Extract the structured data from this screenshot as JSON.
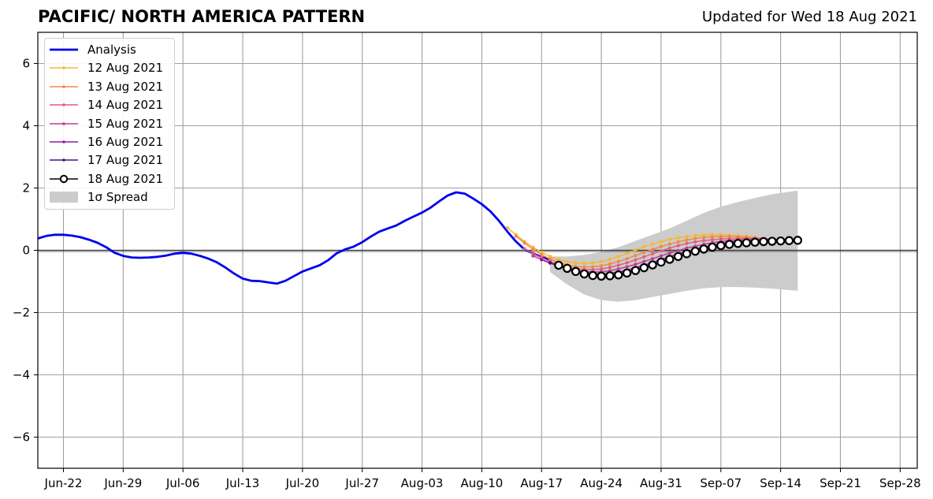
{
  "header": {
    "title": "PACIFIC/ NORTH AMERICA PATTERN",
    "updated": "Updated for Wed 18 Aug 2021"
  },
  "chart_data": {
    "type": "line",
    "title": "PACIFIC/ NORTH AMERICA PATTERN",
    "subtitle": "Updated for Wed 18 Aug 2021",
    "xlabel": "",
    "ylabel": "",
    "x_axis": {
      "kind": "date",
      "range": [
        "2021-06-19",
        "2021-09-30"
      ],
      "ticks": [
        "2021-06-22",
        "2021-06-29",
        "2021-07-06",
        "2021-07-13",
        "2021-07-20",
        "2021-07-27",
        "2021-08-03",
        "2021-08-10",
        "2021-08-17",
        "2021-08-24",
        "2021-08-31",
        "2021-09-07",
        "2021-09-14",
        "2021-09-21",
        "2021-09-28"
      ],
      "tick_labels": [
        "Jun-22",
        "Jun-29",
        "Jul-06",
        "Jul-13",
        "Jul-20",
        "Jul-27",
        "Aug-03",
        "Aug-10",
        "Aug-17",
        "Aug-24",
        "Aug-31",
        "Sep-07",
        "Sep-14",
        "Sep-21",
        "Sep-28"
      ]
    },
    "y_axis": {
      "range": [
        -7,
        7
      ],
      "ticks": [
        -6,
        -4,
        -2,
        0,
        2,
        4,
        6
      ],
      "tick_labels": [
        "−6",
        "−4",
        "−2",
        "0",
        "2",
        "4",
        "6"
      ]
    },
    "grid": true,
    "zero_line": true,
    "legend": {
      "position": "top-left"
    },
    "series": [
      {
        "name": "Analysis",
        "kind": "analysis",
        "color": "#0000ee",
        "x": [
          "2021-06-19",
          "2021-06-20",
          "2021-06-21",
          "2021-06-22",
          "2021-06-23",
          "2021-06-24",
          "2021-06-25",
          "2021-06-26",
          "2021-06-27",
          "2021-06-28",
          "2021-06-29",
          "2021-06-30",
          "2021-07-01",
          "2021-07-02",
          "2021-07-03",
          "2021-07-04",
          "2021-07-05",
          "2021-07-06",
          "2021-07-07",
          "2021-07-08",
          "2021-07-09",
          "2021-07-10",
          "2021-07-11",
          "2021-07-12",
          "2021-07-13",
          "2021-07-14",
          "2021-07-15",
          "2021-07-16",
          "2021-07-17",
          "2021-07-18",
          "2021-07-19",
          "2021-07-20",
          "2021-07-21",
          "2021-07-22",
          "2021-07-23",
          "2021-07-24",
          "2021-07-25",
          "2021-07-26",
          "2021-07-27",
          "2021-07-28",
          "2021-07-29",
          "2021-07-30",
          "2021-07-31",
          "2021-08-01",
          "2021-08-02",
          "2021-08-03",
          "2021-08-04",
          "2021-08-05",
          "2021-08-06",
          "2021-08-07",
          "2021-08-08",
          "2021-08-09",
          "2021-08-10",
          "2021-08-11",
          "2021-08-12",
          "2021-08-13",
          "2021-08-14",
          "2021-08-15",
          "2021-08-16",
          "2021-08-17",
          "2021-08-18"
        ],
        "y": [
          0.38,
          0.46,
          0.5,
          0.5,
          0.47,
          0.42,
          0.34,
          0.24,
          0.1,
          -0.08,
          -0.18,
          -0.23,
          -0.24,
          -0.23,
          -0.21,
          -0.17,
          -0.11,
          -0.08,
          -0.11,
          -0.18,
          -0.27,
          -0.39,
          -0.56,
          -0.75,
          -0.91,
          -0.98,
          -0.99,
          -1.03,
          -1.07,
          -0.98,
          -0.83,
          -0.68,
          -0.58,
          -0.48,
          -0.32,
          -0.1,
          0.03,
          0.12,
          0.26,
          0.44,
          0.6,
          0.7,
          0.8,
          0.95,
          1.08,
          1.21,
          1.37,
          1.57,
          1.76,
          1.86,
          1.82,
          1.66,
          1.48,
          1.25,
          0.95,
          0.6,
          0.28,
          0.03,
          -0.1,
          -0.22,
          -0.3
        ]
      },
      {
        "name": "12 Aug 2021",
        "kind": "forecast",
        "color": "#f7b733",
        "x": [
          "2021-08-13",
          "2021-08-14",
          "2021-08-15",
          "2021-08-16",
          "2021-08-17",
          "2021-08-18",
          "2021-08-19",
          "2021-08-20",
          "2021-08-21",
          "2021-08-22",
          "2021-08-23",
          "2021-08-24",
          "2021-08-25",
          "2021-08-26",
          "2021-08-27",
          "2021-08-28",
          "2021-08-29",
          "2021-08-30",
          "2021-08-31",
          "2021-09-01",
          "2021-09-02",
          "2021-09-03",
          "2021-09-04",
          "2021-09-05",
          "2021-09-06",
          "2021-09-07",
          "2021-09-08",
          "2021-09-09",
          "2021-09-10",
          "2021-09-11"
        ],
        "y": [
          0.72,
          0.5,
          0.28,
          0.1,
          -0.06,
          -0.2,
          -0.3,
          -0.37,
          -0.41,
          -0.42,
          -0.4,
          -0.36,
          -0.29,
          -0.2,
          -0.1,
          0.01,
          0.11,
          0.2,
          0.28,
          0.35,
          0.4,
          0.44,
          0.47,
          0.49,
          0.5,
          0.5,
          0.49,
          0.47,
          0.45,
          0.42
        ]
      },
      {
        "name": "13 Aug 2021",
        "kind": "forecast",
        "color": "#f08a45",
        "x": [
          "2021-08-14",
          "2021-08-15",
          "2021-08-16",
          "2021-08-17",
          "2021-08-18",
          "2021-08-19",
          "2021-08-20",
          "2021-08-21",
          "2021-08-22",
          "2021-08-23",
          "2021-08-24",
          "2021-08-25",
          "2021-08-26",
          "2021-08-27",
          "2021-08-28",
          "2021-08-29",
          "2021-08-30",
          "2021-08-31",
          "2021-09-01",
          "2021-09-02",
          "2021-09-03",
          "2021-09-04",
          "2021-09-05",
          "2021-09-06",
          "2021-09-07",
          "2021-09-08",
          "2021-09-09",
          "2021-09-10",
          "2021-09-11",
          "2021-09-12"
        ],
        "y": [
          0.45,
          0.23,
          0.03,
          -0.14,
          -0.28,
          -0.39,
          -0.47,
          -0.52,
          -0.54,
          -0.53,
          -0.5,
          -0.44,
          -0.36,
          -0.27,
          -0.17,
          -0.07,
          0.03,
          0.12,
          0.2,
          0.27,
          0.33,
          0.38,
          0.41,
          0.43,
          0.44,
          0.44,
          0.43,
          0.42,
          0.4,
          0.38
        ]
      },
      {
        "name": "14 Aug 2021",
        "kind": "forecast",
        "color": "#e0607a",
        "x": [
          "2021-08-15",
          "2021-08-16",
          "2021-08-17",
          "2021-08-18",
          "2021-08-19",
          "2021-08-20",
          "2021-08-21",
          "2021-08-22",
          "2021-08-23",
          "2021-08-24",
          "2021-08-25",
          "2021-08-26",
          "2021-08-27",
          "2021-08-28",
          "2021-08-29",
          "2021-08-30",
          "2021-08-31",
          "2021-09-01",
          "2021-09-02",
          "2021-09-03",
          "2021-09-04",
          "2021-09-05",
          "2021-09-06",
          "2021-09-07",
          "2021-09-08",
          "2021-09-09",
          "2021-09-10",
          "2021-09-11",
          "2021-09-12",
          "2021-09-13"
        ],
        "y": [
          0.05,
          -0.1,
          -0.24,
          -0.36,
          -0.46,
          -0.54,
          -0.59,
          -0.62,
          -0.62,
          -0.6,
          -0.55,
          -0.48,
          -0.4,
          -0.31,
          -0.21,
          -0.11,
          -0.02,
          0.07,
          0.15,
          0.22,
          0.27,
          0.31,
          0.34,
          0.36,
          0.37,
          0.38,
          0.38,
          0.38,
          0.37,
          0.36
        ]
      },
      {
        "name": "15 Aug 2021",
        "kind": "forecast",
        "color": "#c03b96",
        "x": [
          "2021-08-16",
          "2021-08-17",
          "2021-08-18",
          "2021-08-19",
          "2021-08-20",
          "2021-08-21",
          "2021-08-22",
          "2021-08-23",
          "2021-08-24",
          "2021-08-25",
          "2021-08-26",
          "2021-08-27",
          "2021-08-28",
          "2021-08-29",
          "2021-08-30",
          "2021-08-31",
          "2021-09-01",
          "2021-09-02",
          "2021-09-03",
          "2021-09-04",
          "2021-09-05",
          "2021-09-06",
          "2021-09-07",
          "2021-09-08",
          "2021-09-09",
          "2021-09-10",
          "2021-09-11",
          "2021-09-12",
          "2021-09-13",
          "2021-09-14"
        ],
        "y": [
          -0.18,
          -0.3,
          -0.41,
          -0.5,
          -0.58,
          -0.64,
          -0.68,
          -0.7,
          -0.69,
          -0.66,
          -0.6,
          -0.53,
          -0.45,
          -0.36,
          -0.27,
          -0.18,
          -0.09,
          -0.01,
          0.07,
          0.13,
          0.19,
          0.24,
          0.28,
          0.31,
          0.33,
          0.34,
          0.35,
          0.35,
          0.35,
          0.34
        ]
      },
      {
        "name": "16 Aug 2021",
        "kind": "forecast",
        "color": "#8e1ca6",
        "x": [
          "2021-08-17",
          "2021-08-18",
          "2021-08-19",
          "2021-08-20",
          "2021-08-21",
          "2021-08-22",
          "2021-08-23",
          "2021-08-24",
          "2021-08-25",
          "2021-08-26",
          "2021-08-27",
          "2021-08-28",
          "2021-08-29",
          "2021-08-30",
          "2021-08-31",
          "2021-09-01",
          "2021-09-02",
          "2021-09-03",
          "2021-09-04",
          "2021-09-05",
          "2021-09-06",
          "2021-09-07",
          "2021-09-08",
          "2021-09-09",
          "2021-09-10",
          "2021-09-11",
          "2021-09-12",
          "2021-09-13",
          "2021-09-14",
          "2021-09-15"
        ],
        "y": [
          -0.3,
          -0.41,
          -0.51,
          -0.6,
          -0.67,
          -0.72,
          -0.75,
          -0.76,
          -0.74,
          -0.7,
          -0.64,
          -0.56,
          -0.48,
          -0.39,
          -0.3,
          -0.21,
          -0.12,
          -0.04,
          0.04,
          0.1,
          0.16,
          0.21,
          0.25,
          0.28,
          0.3,
          0.32,
          0.33,
          0.33,
          0.33,
          0.32
        ]
      },
      {
        "name": "17 Aug 2021",
        "kind": "forecast",
        "color": "#4b0f8c",
        "x": [
          "2021-08-18",
          "2021-08-19",
          "2021-08-20",
          "2021-08-21",
          "2021-08-22",
          "2021-08-23",
          "2021-08-24",
          "2021-08-25",
          "2021-08-26",
          "2021-08-27",
          "2021-08-28",
          "2021-08-29",
          "2021-08-30",
          "2021-08-31",
          "2021-09-01",
          "2021-09-02",
          "2021-09-03",
          "2021-09-04",
          "2021-09-05",
          "2021-09-06",
          "2021-09-07",
          "2021-09-08",
          "2021-09-09",
          "2021-09-10",
          "2021-09-11",
          "2021-09-12",
          "2021-09-13",
          "2021-09-14",
          "2021-09-15",
          "2021-09-16"
        ],
        "y": [
          -0.4,
          -0.5,
          -0.59,
          -0.67,
          -0.73,
          -0.77,
          -0.79,
          -0.78,
          -0.75,
          -0.7,
          -0.63,
          -0.55,
          -0.46,
          -0.37,
          -0.28,
          -0.19,
          -0.1,
          -0.02,
          0.05,
          0.11,
          0.16,
          0.2,
          0.24,
          0.27,
          0.29,
          0.3,
          0.31,
          0.31,
          0.31,
          0.3
        ]
      },
      {
        "name": "18 Aug 2021",
        "kind": "current",
        "color": "#000000",
        "x": [
          "2021-08-19",
          "2021-08-20",
          "2021-08-21",
          "2021-08-22",
          "2021-08-23",
          "2021-08-24",
          "2021-08-25",
          "2021-08-26",
          "2021-08-27",
          "2021-08-28",
          "2021-08-29",
          "2021-08-30",
          "2021-08-31",
          "2021-09-01",
          "2021-09-02",
          "2021-09-03",
          "2021-09-04",
          "2021-09-05",
          "2021-09-06",
          "2021-09-07",
          "2021-09-08",
          "2021-09-09",
          "2021-09-10",
          "2021-09-11",
          "2021-09-12",
          "2021-09-13",
          "2021-09-14",
          "2021-09-15",
          "2021-09-16"
        ],
        "y": [
          -0.48,
          -0.58,
          -0.68,
          -0.76,
          -0.81,
          -0.83,
          -0.82,
          -0.79,
          -0.73,
          -0.65,
          -0.56,
          -0.47,
          -0.38,
          -0.29,
          -0.2,
          -0.11,
          -0.03,
          0.04,
          0.1,
          0.15,
          0.19,
          0.22,
          0.24,
          0.26,
          0.28,
          0.29,
          0.3,
          0.31,
          0.32
        ]
      }
    ],
    "spread": {
      "name": "1σ Spread",
      "color": "#cccccc",
      "x": [
        "2021-08-18",
        "2021-08-20",
        "2021-08-22",
        "2021-08-24",
        "2021-08-26",
        "2021-08-28",
        "2021-08-30",
        "2021-09-01",
        "2021-09-03",
        "2021-09-05",
        "2021-09-07",
        "2021-09-09",
        "2021-09-11",
        "2021-09-13",
        "2021-09-16"
      ],
      "upper": [
        -0.2,
        -0.2,
        -0.15,
        -0.05,
        0.1,
        0.3,
        0.5,
        0.7,
        0.95,
        1.2,
        1.4,
        1.55,
        1.68,
        1.8,
        1.92
      ],
      "lower": [
        -0.7,
        -1.1,
        -1.42,
        -1.6,
        -1.65,
        -1.6,
        -1.5,
        -1.4,
        -1.3,
        -1.22,
        -1.18,
        -1.18,
        -1.2,
        -1.23,
        -1.3
      ]
    }
  }
}
